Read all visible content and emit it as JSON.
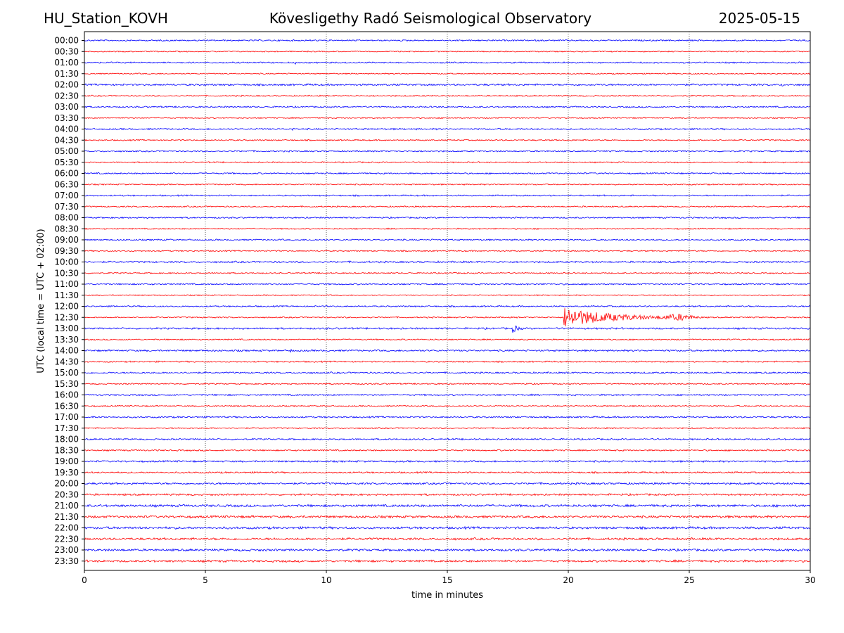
{
  "header": {
    "station": "HU_Station_KOVH",
    "observatory": "Kövesligethy Radó Seismological Observatory",
    "date": "2025-05-15"
  },
  "chart_data": {
    "type": "line",
    "title": "Kövesligethy Radó Seismological Observatory",
    "xlabel": "time in minutes",
    "ylabel": "UTC (local time = UTC + 02:00)",
    "xlim": [
      0,
      30
    ],
    "xticks": [
      "0",
      "5",
      "10",
      "15",
      "20",
      "25",
      "30"
    ],
    "xtick_values": [
      0,
      5,
      10,
      15,
      20,
      25,
      30
    ],
    "grid": "vertical dotted at 5-minute intervals",
    "rows": [
      "00:00",
      "00:30",
      "01:00",
      "01:30",
      "02:00",
      "02:30",
      "03:00",
      "03:30",
      "04:00",
      "04:30",
      "05:00",
      "05:30",
      "06:00",
      "06:30",
      "07:00",
      "07:30",
      "08:00",
      "08:30",
      "09:00",
      "09:30",
      "10:00",
      "10:30",
      "11:00",
      "11:30",
      "12:00",
      "12:30",
      "13:00",
      "13:30",
      "14:00",
      "14:30",
      "15:00",
      "15:30",
      "16:00",
      "16:30",
      "17:00",
      "17:30",
      "18:00",
      "18:30",
      "19:00",
      "19:30",
      "20:00",
      "20:30",
      "21:00",
      "21:30",
      "22:00",
      "22:30",
      "23:00",
      "23:30"
    ],
    "colors": [
      "#0000ff",
      "#ff0000"
    ],
    "noise_levels": [
      1,
      0.8,
      1,
      0.8,
      1.3,
      0.9,
      1,
      0.8,
      1.1,
      0.9,
      1,
      0.9,
      1,
      0.9,
      1,
      0.9,
      1,
      0.9,
      1,
      0.9,
      1.2,
      0.9,
      1,
      0.8,
      1,
      0.9,
      1.2,
      0.9,
      1.2,
      1,
      1.1,
      0.9,
      1.1,
      0.9,
      1.1,
      0.9,
      1.1,
      1,
      1.2,
      1.1,
      1.3,
      1.3,
      1.6,
      1.6,
      1.6,
      1.5,
      1.5,
      1.5
    ],
    "events": [
      {
        "row": "12:30",
        "start_minute": 19.8,
        "end_minute": 27.0,
        "peak": 14,
        "description": "earthquake signal"
      },
      {
        "row": "13:00",
        "start_minute": 17.7,
        "end_minute": 18.6,
        "peak": 6,
        "description": "spike"
      },
      {
        "row": "01:00",
        "start_minute": 8.7,
        "end_minute": 9.2,
        "peak": 2.5
      },
      {
        "row": "04:00",
        "start_minute": 8.6,
        "end_minute": 8.8,
        "peak": 3
      },
      {
        "row": "09:00",
        "start_minute": 3.5,
        "end_minute": 3.8,
        "peak": 3
      },
      {
        "row": "14:00",
        "start_minute": 8.5,
        "end_minute": 8.9,
        "peak": 3
      },
      {
        "row": "17:00",
        "start_minute": 0.3,
        "end_minute": 0.6,
        "peak": 3
      },
      {
        "row": "02:00",
        "start_minute": 28.8,
        "end_minute": 29.6,
        "peak": 2.5
      },
      {
        "row": "19:00",
        "start_minute": 19.6,
        "end_minute": 19.9,
        "peak": 3
      },
      {
        "row": "18:30",
        "start_minute": 28.2,
        "end_minute": 28.5,
        "peak": 2.5
      }
    ]
  }
}
